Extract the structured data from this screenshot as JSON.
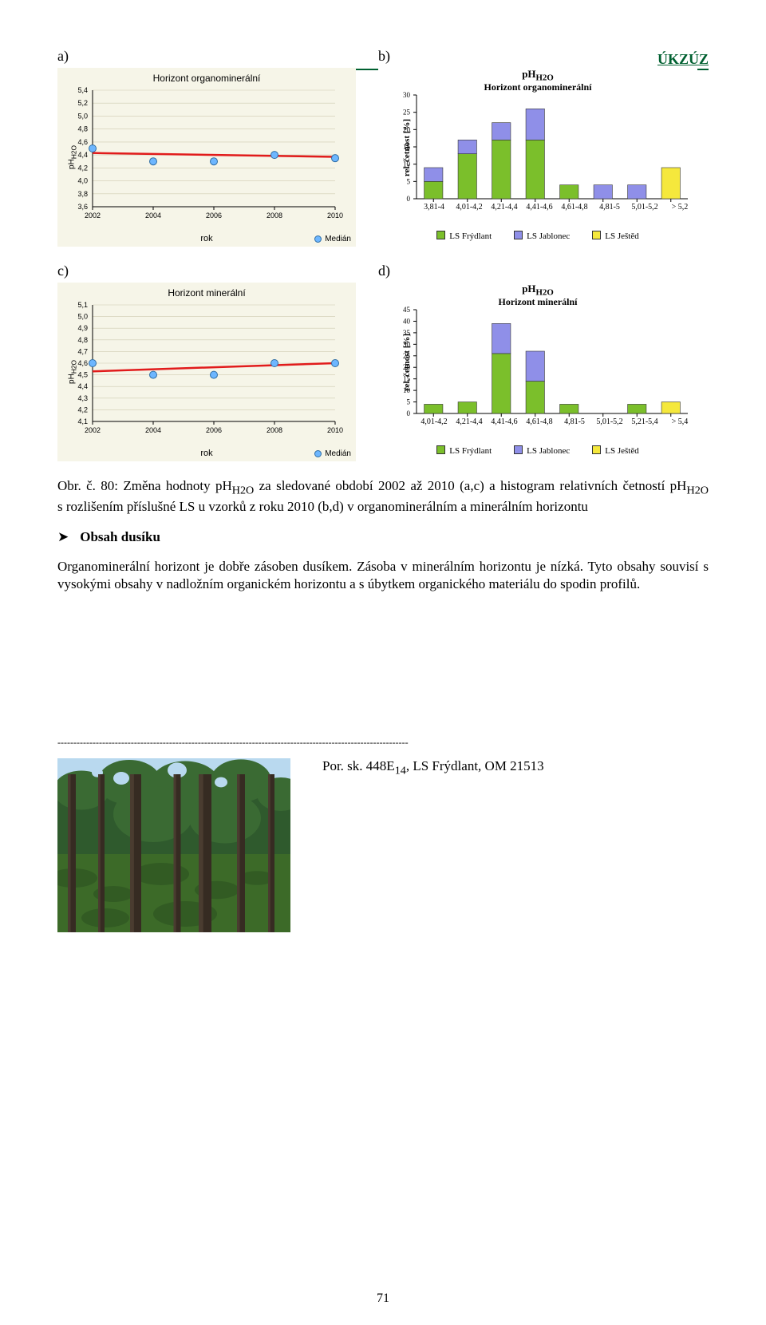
{
  "header_brand": "ÚKZÚZ",
  "labels": {
    "a": "a)",
    "b": "b)",
    "c": "c)",
    "d": "d)"
  },
  "scatter_a": {
    "title": "Horizont organominerální",
    "ylabel": "pH H2O",
    "xlabel": "rok",
    "legend": "Medián",
    "ylim": [
      3.6,
      5.4
    ],
    "ytick_step": 0.2,
    "xticks": [
      2002,
      2004,
      2006,
      2008,
      2010
    ],
    "points": [
      {
        "x": 2002,
        "y": 4.5
      },
      {
        "x": 2004,
        "y": 4.3
      },
      {
        "x": 2006,
        "y": 4.3
      },
      {
        "x": 2008,
        "y": 4.4
      },
      {
        "x": 2010,
        "y": 4.35
      }
    ],
    "trend": {
      "x1": 2002,
      "y1": 4.43,
      "x2": 2010,
      "y2": 4.37
    },
    "bg": "#f6f5e8",
    "axis_color": "#000000",
    "point_fill": "#6db6ff",
    "point_stroke": "#2e6da4",
    "line_color": "#e11b1b",
    "line_width": 2.5
  },
  "scatter_c": {
    "title": "Horizont minerální",
    "ylabel": "pH H2O",
    "xlabel": "rok",
    "legend": "Medián",
    "ylim": [
      4.1,
      5.1
    ],
    "ytick_step": 0.1,
    "xticks": [
      2002,
      2004,
      2006,
      2008,
      2010
    ],
    "points": [
      {
        "x": 2002,
        "y": 4.6
      },
      {
        "x": 2004,
        "y": 4.5
      },
      {
        "x": 2006,
        "y": 4.5
      },
      {
        "x": 2008,
        "y": 4.6
      },
      {
        "x": 2010,
        "y": 4.6
      }
    ],
    "trend": {
      "x1": 2002,
      "y1": 4.53,
      "x2": 2010,
      "y2": 4.6
    },
    "bg": "#f6f5e8",
    "axis_color": "#000000",
    "point_fill": "#6db6ff",
    "point_stroke": "#2e6da4",
    "line_color": "#e11b1b",
    "line_width": 2.5
  },
  "bar_b": {
    "title1": "pH",
    "title1_sub": "H2O",
    "title2": "Horizont organominerální",
    "ylabel": "rel. četnost [%]",
    "ylim": [
      0,
      30
    ],
    "ytick_step": 5,
    "categories": [
      "3,81-4",
      "4,01-4,2",
      "4,21-4,4",
      "4,41-4,6",
      "4,61-4,8",
      "4,81-5",
      "5,01-5,2",
      "> 5,2"
    ],
    "series": [
      {
        "name": "LS Frýdlant",
        "color": "#7bbf2b",
        "values": [
          5,
          13,
          17,
          17,
          4,
          0,
          0,
          0
        ]
      },
      {
        "name": "LS Jablonec",
        "color": "#8f8fe8",
        "values": [
          4,
          4,
          5,
          9,
          0,
          4,
          4,
          0
        ]
      },
      {
        "name": "LS Ještěd",
        "color": "#f5e83c",
        "values": [
          0,
          0,
          0,
          0,
          0,
          0,
          0,
          9
        ]
      }
    ]
  },
  "bar_d": {
    "title1": "pH",
    "title1_sub": "H2O",
    "title2": "Horizont minerální",
    "ylabel": "rel. četnost [%]",
    "ylim": [
      0,
      45
    ],
    "ytick_step": 5,
    "categories": [
      "4,01-4,2",
      "4,21-4,4",
      "4,41-4,6",
      "4,61-4,8",
      "4,81-5",
      "5,01-5,2",
      "5,21-5,4",
      "> 5,4"
    ],
    "series": [
      {
        "name": "LS Frýdlant",
        "color": "#7bbf2b",
        "values": [
          4,
          5,
          26,
          14,
          4,
          0,
          4,
          0
        ]
      },
      {
        "name": "LS Jablonec",
        "color": "#8f8fe8",
        "values": [
          0,
          0,
          13,
          13,
          0,
          0,
          0,
          0
        ]
      },
      {
        "name": "LS Ještěd",
        "color": "#f5e83c",
        "values": [
          0,
          0,
          0,
          0,
          0,
          0,
          0,
          5
        ]
      }
    ]
  },
  "caption": "Obr. č. 80: Změna hodnoty pHH2O za sledované období 2002 až 2010 (a,c) a histogram relativních četností pHH2O s rozlišením příslušné LS u vzorků z roku 2010 (b,d) v organominerálním a minerálním horizontu",
  "section_head": "Obsah dusíku",
  "body_text": "Organominerální horizont je dobře zásoben dusíkem. Zásoba v minerálním horizontu je nízká. Tyto obsahy souvisí s vysokými obsahy v nadložním organickém horizontu a s úbytkem organického materiálu do spodin profilů.",
  "photo_caption": "Por. sk. 448E14, LS Frýdlant, OM 21513",
  "page_number": "71",
  "photo": {
    "sky": "#b9d9ef",
    "canopy": "#2f5a2d",
    "ground": "#3c6a28",
    "trunk": "#362b22"
  }
}
